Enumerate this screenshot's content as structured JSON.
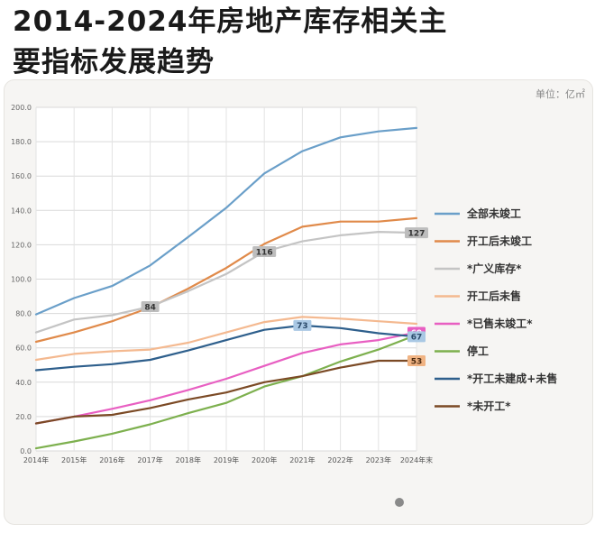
{
  "title_line1": "2014-2024年房地产库存相关主",
  "title_line2": "要指标发展趋势",
  "unit_label": "单位：亿㎡",
  "chart_data": {
    "type": "line",
    "title": "2014-2024年房地产库存相关主要指标发展趋势",
    "xlabel": "",
    "ylabel": "单位：亿㎡",
    "ylim": [
      0,
      200
    ],
    "yticks": [
      "0.0",
      "20.0",
      "40.0",
      "60.0",
      "80.0",
      "100.0",
      "120.0",
      "140.0",
      "160.0",
      "180.0",
      "200.0"
    ],
    "categories": [
      "2014年",
      "2015年",
      "2016年",
      "2017年",
      "2018年",
      "2019年",
      "2020年",
      "2021年",
      "2022年",
      "2023年",
      "2024年末"
    ],
    "series": [
      {
        "name": "全部未竣工",
        "color": "#6a9fc9",
        "values": [
          79.5,
          89,
          96,
          108,
          124.5,
          141.5,
          161.5,
          174.5,
          182.5,
          186,
          188
        ]
      },
      {
        "name": "开工后未竣工",
        "color": "#e08a4a",
        "values": [
          63.5,
          69,
          75.5,
          83.5,
          94.5,
          106.5,
          120.5,
          130.5,
          133.5,
          133.5,
          135.5
        ]
      },
      {
        "name": "*广义库存*",
        "color": "#c4c4c4",
        "values": [
          69,
          76.5,
          79,
          84,
          93,
          103,
          116,
          122,
          125.5,
          127.5,
          127
        ]
      },
      {
        "name": "开工后未售",
        "color": "#f4b990",
        "values": [
          53,
          56.5,
          58,
          59,
          63,
          69,
          75,
          78,
          77,
          75.5,
          74
        ]
      },
      {
        "name": "*已售未竣工*",
        "color": "#e85fc2",
        "values": [
          16,
          20,
          24.5,
          29.5,
          35.5,
          42,
          49.5,
          57,
          62,
          64.5,
          69
        ]
      },
      {
        "name": "停工",
        "color": "#7db04e",
        "values": [
          1.5,
          5.5,
          10,
          15.5,
          22,
          28,
          37.5,
          43.5,
          52,
          59,
          67.5
        ]
      },
      {
        "name": "*开工未建成+未售",
        "color": "#2e5f8c",
        "values": [
          47,
          49,
          50.5,
          53,
          58.5,
          64.5,
          70.5,
          73,
          71.5,
          68.5,
          66.5
        ]
      },
      {
        "name": "*未开工*",
        "color": "#7b4a25",
        "values": [
          16,
          20,
          21,
          25,
          30,
          34,
          40,
          43.5,
          48.5,
          52.5,
          52.5
        ]
      }
    ],
    "annotations": [
      {
        "text": "84",
        "series": "*广义库存*",
        "index": 3,
        "bg": "#bdbdbd",
        "fg": "#333333"
      },
      {
        "text": "116",
        "series": "*广义库存*",
        "index": 6,
        "bg": "#bdbdbd",
        "fg": "#333333"
      },
      {
        "text": "127",
        "series": "*广义库存*",
        "index": 10,
        "bg": "#bdbdbd",
        "fg": "#333333"
      },
      {
        "text": "73",
        "series": "*开工未建成+未售",
        "index": 7,
        "bg": "#a9c8e4",
        "fg": "#2a4a6a"
      },
      {
        "text": "69",
        "series": "*已售未竣工*",
        "index": 10,
        "bg": "#e85fc2",
        "fg": "#ffffff"
      },
      {
        "text": "67",
        "series": "*开工未建成+未售",
        "index": 10,
        "bg": "#a9c8e4",
        "fg": "#2a4a6a"
      },
      {
        "text": "53",
        "series": "*未开工*",
        "index": 10,
        "bg": "#f0b383",
        "fg": "#4a2a10"
      }
    ],
    "legend_position": "right",
    "grid": true
  }
}
